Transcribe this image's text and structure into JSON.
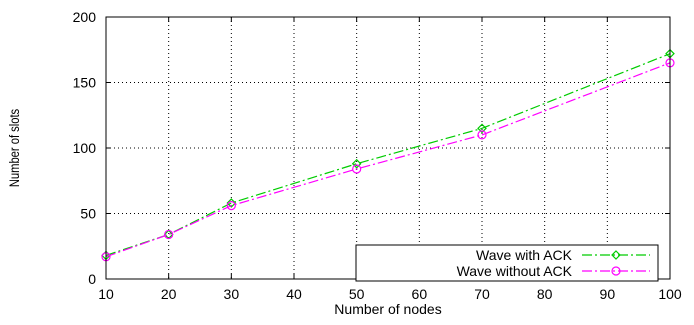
{
  "chart_data": {
    "type": "line",
    "xlabel": "Number of nodes",
    "ylabel": "Number of slots",
    "x": [
      10,
      20,
      30,
      50,
      70,
      100
    ],
    "xlim": [
      10,
      100
    ],
    "ylim": [
      0,
      200
    ],
    "xticks": [
      "10",
      "20",
      "30",
      "40",
      "50",
      "60",
      "70",
      "80",
      "90",
      "100"
    ],
    "yticks": [
      "0",
      "50",
      "100",
      "150",
      "200"
    ],
    "grid": true,
    "legend_position": "bottom-right",
    "series": [
      {
        "name": "Wave with ACK",
        "values": [
          18,
          34,
          58,
          88,
          115,
          172
        ],
        "color": "#00cc00",
        "marker": "diamond"
      },
      {
        "name": "Wave without ACK",
        "values": [
          17,
          34,
          56,
          84,
          110,
          165
        ],
        "color": "#ff00ff",
        "marker": "circle"
      }
    ]
  }
}
